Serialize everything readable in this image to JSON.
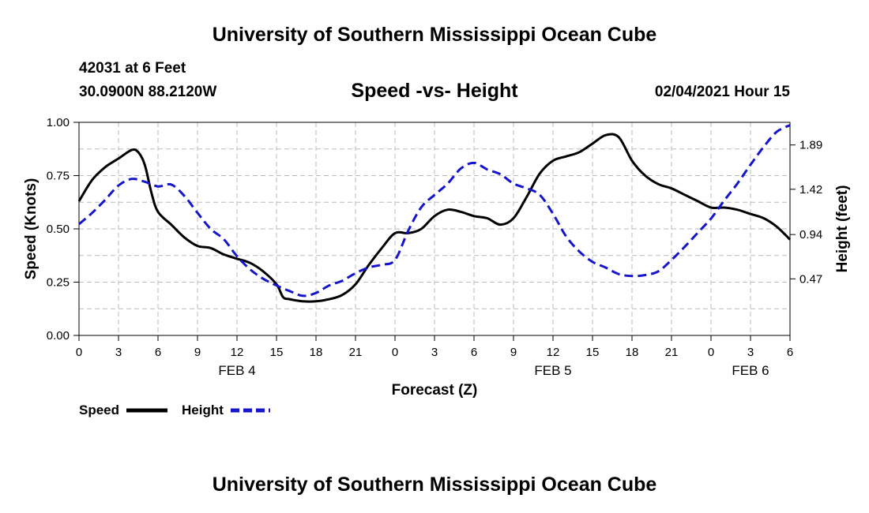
{
  "header": {
    "title": "University of Southern Mississippi Ocean Cube",
    "station": "42031 at 6 Feet",
    "coordinates": "30.0900N 88.2120W",
    "datetime": "02/04/2021 Hour 15"
  },
  "footer": {
    "title": "University of Southern Mississippi Ocean Cube"
  },
  "chart_data": {
    "type": "line",
    "title": "Speed -vs- Height",
    "xlabel": "Forecast (Z)",
    "ylabel_left": "Speed (Knots)",
    "ylabel_right": "Height (feet)",
    "x_unit": "hours (Z) from 00Z FEB 4",
    "xlim": [
      0,
      54
    ],
    "x_tick_labels": [
      "0",
      "3",
      "6",
      "9",
      "12",
      "15",
      "18",
      "21",
      "0",
      "3",
      "6",
      "9",
      "12",
      "15",
      "18",
      "21",
      "0",
      "3",
      "6"
    ],
    "day_labels": [
      {
        "label": "FEB 4",
        "hour": 12
      },
      {
        "label": "FEB 5",
        "hour": 36
      },
      {
        "label": "FEB 6",
        "hour": 51
      }
    ],
    "ylim_left": [
      0,
      1
    ],
    "y_ticks_left": [
      "0.00",
      "0.25",
      "0.50",
      "0.75",
      "1.00"
    ],
    "ylim_right": [
      -0.13,
      2.13
    ],
    "y_ticks_right": [
      "0.47",
      "0.94",
      "1.42",
      "1.89"
    ],
    "grid": true,
    "legend_placement": "bottom-left",
    "series": [
      {
        "name": "Speed",
        "axis": "left",
        "color": "#000000",
        "dash": "solid",
        "x": [
          0,
          1,
          2,
          3,
          4,
          4.5,
          5,
          5.5,
          6,
          7,
          8,
          9,
          10,
          11,
          12,
          13,
          14,
          15,
          15.5,
          16,
          17,
          18,
          19,
          20,
          21,
          22,
          23,
          24,
          25,
          26,
          27,
          28,
          29,
          30,
          31,
          32,
          33,
          34,
          35,
          36,
          37,
          38,
          39,
          40,
          41,
          42,
          43,
          44,
          45,
          46,
          47,
          48,
          49,
          50,
          51,
          52,
          53,
          54
        ],
        "values": [
          0.63,
          0.73,
          0.79,
          0.83,
          0.87,
          0.86,
          0.8,
          0.67,
          0.58,
          0.52,
          0.46,
          0.42,
          0.41,
          0.38,
          0.36,
          0.34,
          0.3,
          0.24,
          0.18,
          0.17,
          0.16,
          0.16,
          0.17,
          0.19,
          0.24,
          0.33,
          0.41,
          0.48,
          0.48,
          0.5,
          0.56,
          0.59,
          0.58,
          0.56,
          0.55,
          0.52,
          0.55,
          0.65,
          0.76,
          0.82,
          0.84,
          0.86,
          0.9,
          0.94,
          0.93,
          0.82,
          0.75,
          0.71,
          0.69,
          0.66,
          0.63,
          0.6,
          0.6,
          0.59,
          0.57,
          0.55,
          0.51,
          0.45
        ]
      },
      {
        "name": "Height",
        "axis": "right",
        "color": "#1515cc",
        "dash": "dashed",
        "x": [
          0,
          1,
          2,
          3,
          4,
          5,
          6,
          7,
          8,
          9,
          10,
          11,
          12,
          13,
          14,
          15,
          16,
          17,
          18,
          19,
          20,
          21,
          22,
          23,
          24,
          25,
          26,
          27,
          28,
          29,
          30,
          31,
          32,
          33,
          34,
          35,
          36,
          37,
          38,
          39,
          40,
          41,
          42,
          43,
          44,
          45,
          46,
          47,
          48,
          49,
          50,
          51,
          52,
          53,
          54
        ],
        "values": [
          1.05,
          1.17,
          1.31,
          1.46,
          1.53,
          1.5,
          1.45,
          1.47,
          1.35,
          1.17,
          1.0,
          0.89,
          0.71,
          0.57,
          0.47,
          0.4,
          0.34,
          0.29,
          0.32,
          0.4,
          0.45,
          0.53,
          0.59,
          0.62,
          0.67,
          0.98,
          1.23,
          1.36,
          1.48,
          1.64,
          1.7,
          1.63,
          1.58,
          1.48,
          1.43,
          1.36,
          1.16,
          0.92,
          0.76,
          0.65,
          0.59,
          0.52,
          0.5,
          0.51,
          0.55,
          0.67,
          0.81,
          0.96,
          1.11,
          1.3,
          1.48,
          1.68,
          1.87,
          2.03,
          2.1
        ]
      }
    ]
  }
}
